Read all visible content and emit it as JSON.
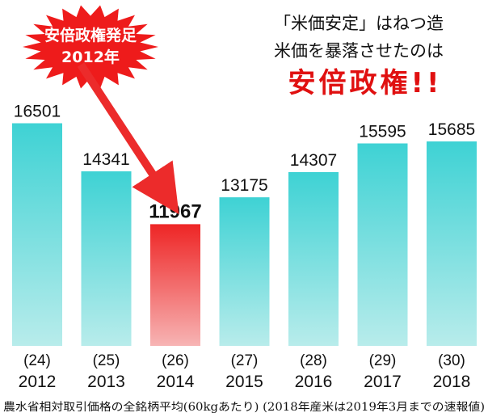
{
  "chart_data": {
    "type": "bar",
    "categories": [
      "2012",
      "2013",
      "2014",
      "2015",
      "2016",
      "2017",
      "2018"
    ],
    "era_labels": [
      "(24)",
      "(25)",
      "(26)",
      "(27)",
      "(28)",
      "(29)",
      "(30)"
    ],
    "values": [
      16501,
      14341,
      11967,
      13175,
      14307,
      15595,
      15685
    ],
    "highlight_index": 2,
    "ylim": [
      6500,
      17500
    ],
    "colors": {
      "bar": "#3ed2d4",
      "bar_fade": "#b8eceb",
      "highlight": "#ee2525",
      "highlight_fade": "#f7b4b4",
      "arrow": "#ec2b2b"
    },
    "badge_lines": [
      "安倍政権発足",
      "2012年"
    ],
    "headline_lines": [
      "「米価安定」はねつ造",
      "米価を暴落させたのは"
    ],
    "headline_emphasis": "安倍政権!!",
    "footnote": "農水省相対取引価格の全銘柄平均(60kgあたり) (2018年産米は2019年3月までの速報値)"
  }
}
